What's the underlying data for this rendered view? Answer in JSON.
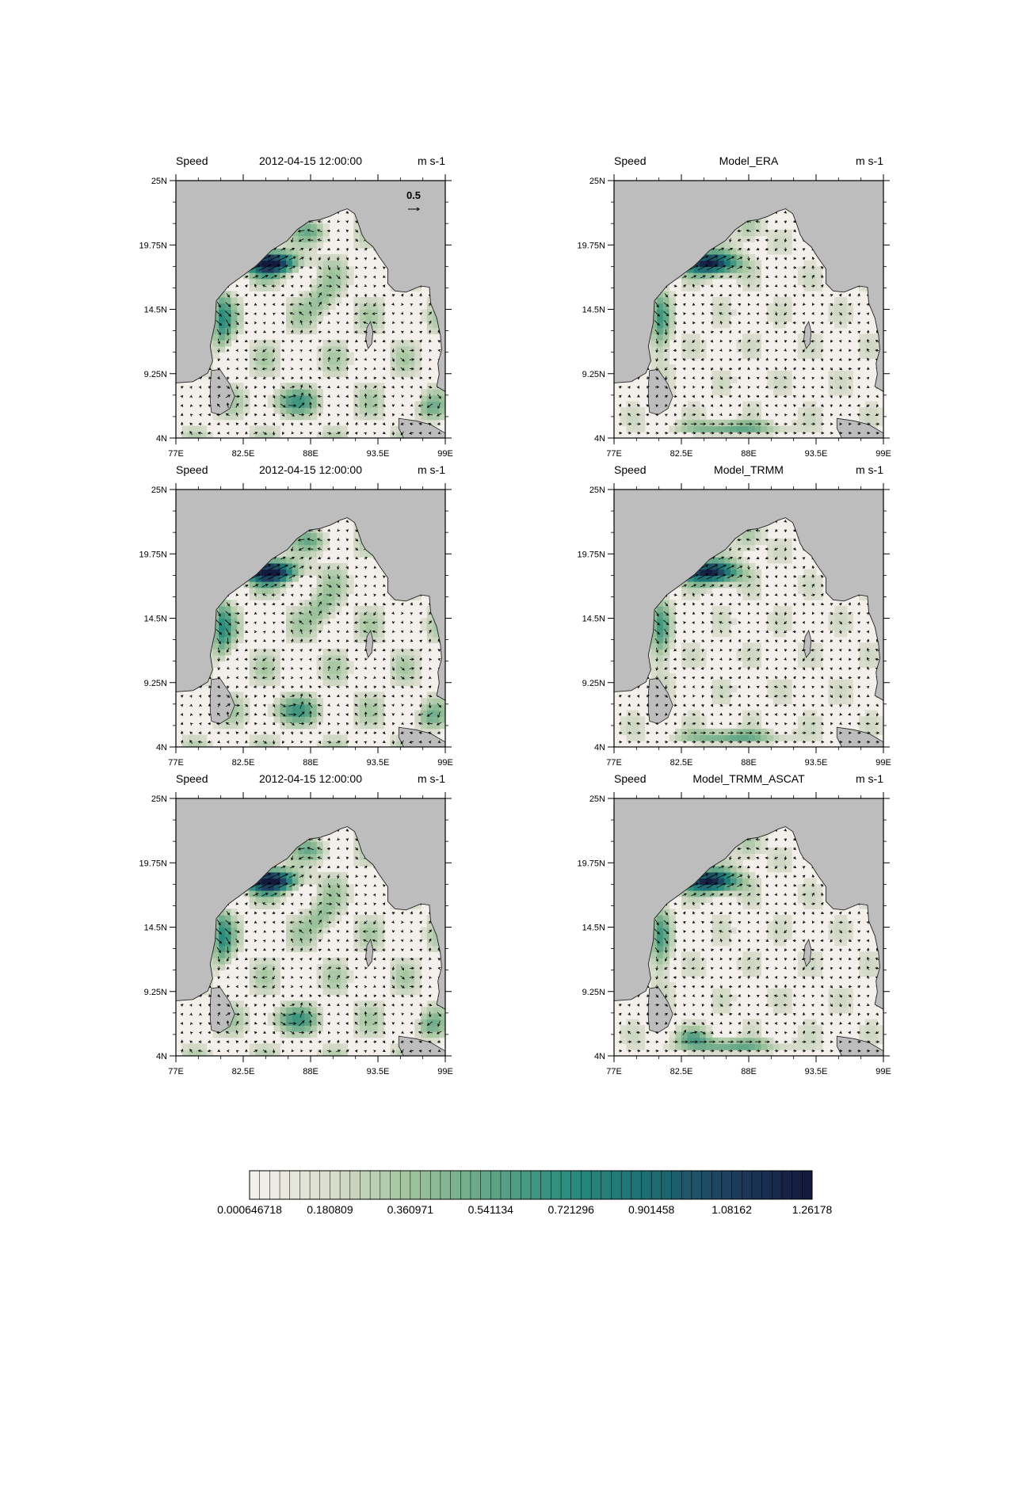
{
  "panels": [
    {
      "left": "Speed",
      "center": "2012-04-15 12:00:00",
      "right": "m s-1",
      "ref_vector": "0.5",
      "variant": 0
    },
    {
      "left": "Speed",
      "center": "Model_ERA",
      "right": "m s-1",
      "variant": 1
    },
    {
      "left": "Speed",
      "center": "2012-04-15 12:00:00",
      "right": "m s-1",
      "variant": 0
    },
    {
      "left": "Speed",
      "center": "Model_TRMM",
      "right": "m s-1",
      "variant": 1
    },
    {
      "left": "Speed",
      "center": "2012-04-15 12:00:00",
      "right": "m s-1",
      "variant": 0
    },
    {
      "left": "Speed",
      "center": "Model_TRMM_ASCAT",
      "right": "m s-1",
      "variant": 2
    }
  ],
  "axes": {
    "lat_ticks": [
      "25N",
      "19.75N",
      "14.5N",
      "9.25N",
      "4N"
    ],
    "lon_ticks": [
      "77E",
      "82.5E",
      "88E",
      "93.5E",
      "99E"
    ],
    "lat_range": [
      4,
      25
    ],
    "lon_range": [
      77,
      99
    ]
  },
  "colorbar": {
    "labels": [
      "0.000646718",
      "0.180809",
      "0.360971",
      "0.541134",
      "0.721296",
      "0.901458",
      "1.08162",
      "1.26178"
    ],
    "levels": 56,
    "colors": [
      "#f3efea",
      "#d9dccc",
      "#9ec39c",
      "#5fa486",
      "#2a8c7e",
      "#1c6e74",
      "#1d3f5e",
      "#141a3d"
    ]
  },
  "colors": {
    "land": "#bdbdbd",
    "ocean_low": "#f3efea",
    "coast": "#222222",
    "arrow": "#000000"
  }
}
